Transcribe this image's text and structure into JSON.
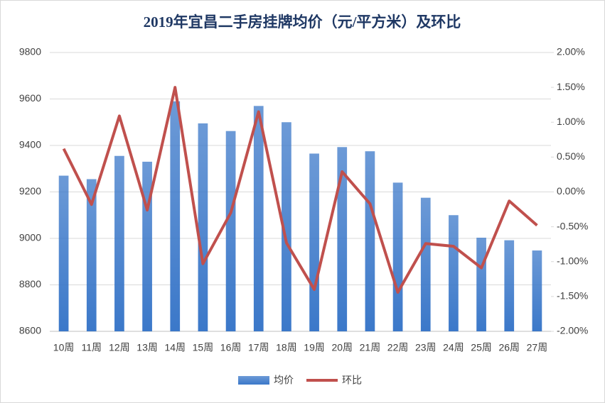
{
  "chart_data": {
    "type": "bar-line",
    "title": "2019年宜昌二手房挂牌均价（元/平方米）及环比",
    "categories": [
      "10周",
      "11周",
      "12周",
      "13周",
      "14周",
      "15周",
      "16周",
      "17周",
      "18周",
      "19周",
      "20周",
      "21周",
      "22周",
      "23周",
      "24周",
      "25周",
      "26周",
      "27周"
    ],
    "series": [
      {
        "name": "均价",
        "type": "bar",
        "color": "#3b78c9",
        "values": [
          9270,
          9255,
          9355,
          9330,
          9590,
          9495,
          9462,
          9570,
          9500,
          9365,
          9393,
          9375,
          9240,
          9175,
          9100,
          9003,
          8992,
          8948
        ]
      },
      {
        "name": "环比",
        "type": "line",
        "axis": "y2",
        "color": "#c0504d",
        "values": [
          0.62,
          -0.18,
          1.09,
          -0.26,
          1.5,
          -1.03,
          -0.3,
          1.15,
          -0.73,
          -1.4,
          0.29,
          -0.17,
          -1.44,
          -0.74,
          -0.78,
          -1.09,
          -0.13,
          -0.48
        ]
      }
    ],
    "ylim": [
      8600,
      9800
    ],
    "yticks": [
      8600,
      8800,
      9000,
      9200,
      9400,
      9600,
      9800
    ],
    "y2lim": [
      -2,
      2
    ],
    "y2ticks": [
      {
        "value": -2,
        "label": "-2.00%"
      },
      {
        "value": -1.5,
        "label": "-1.50%"
      },
      {
        "value": -1,
        "label": "-1.00%"
      },
      {
        "value": -0.5,
        "label": "-0.50%"
      },
      {
        "value": 0,
        "label": "0.00%"
      },
      {
        "value": 0.5,
        "label": "0.50%"
      },
      {
        "value": 1,
        "label": "1.00%"
      },
      {
        "value": 1.5,
        "label": "1.50%"
      },
      {
        "value": 2,
        "label": "2.00%"
      }
    ],
    "grid": true,
    "legend": "bottom"
  }
}
